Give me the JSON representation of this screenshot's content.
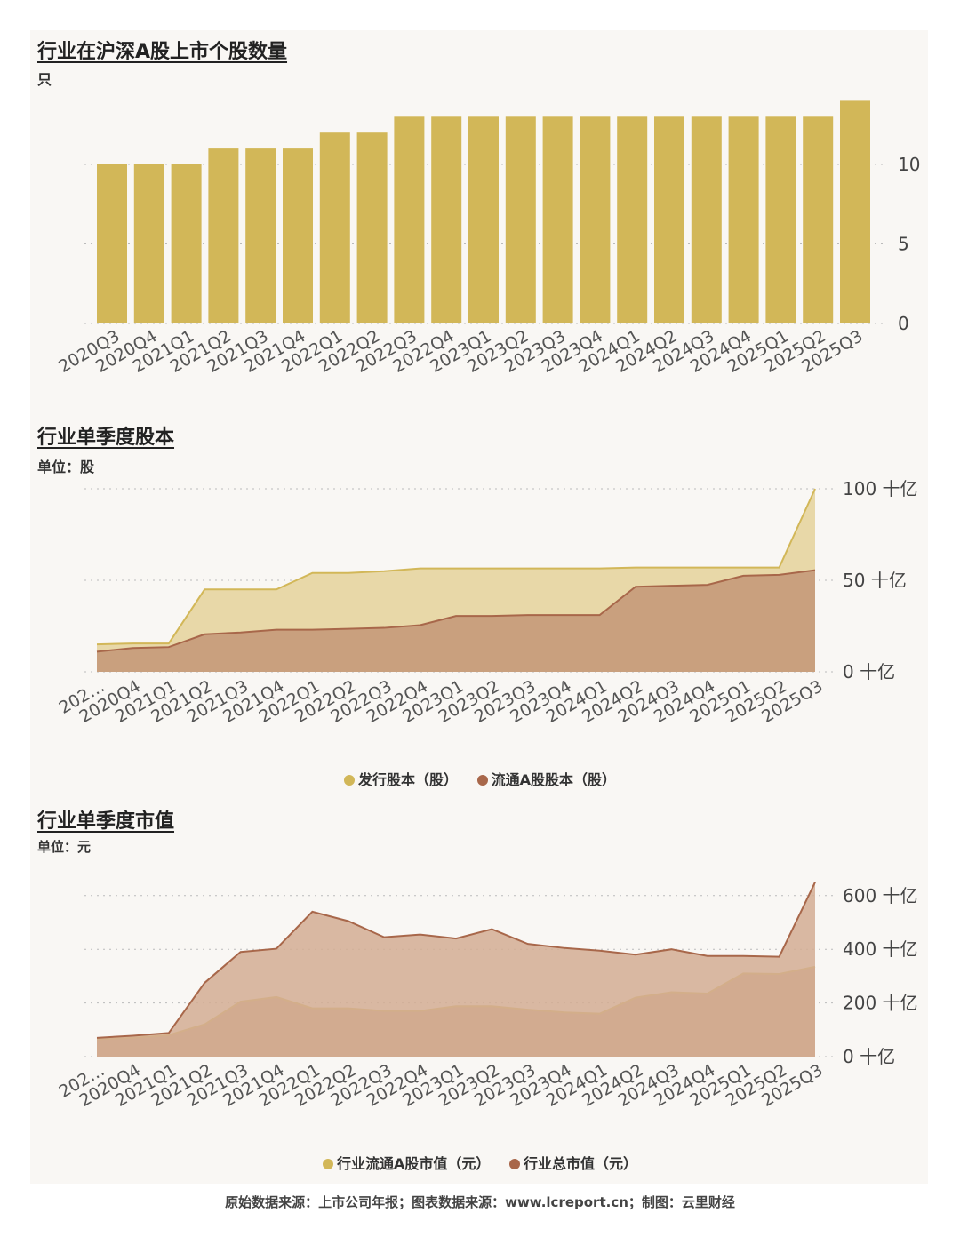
{
  "footer": "原始数据来源：上市公司年报；图表数据来源：www.lcreport.cn；制图：云里财经",
  "colors": {
    "gold": "#d2b758",
    "gold_fill": "#e8d8a8",
    "brown": "#a8674a",
    "brown_fill": "#c9a07e",
    "brown_fill2": "#d4ad93"
  },
  "chart_data": [
    {
      "type": "bar",
      "title": "行业在沪深A股上市个股数量",
      "unit": "只",
      "categories": [
        "2020Q3",
        "2020Q4",
        "2021Q1",
        "2021Q2",
        "2021Q3",
        "2021Q4",
        "2022Q1",
        "2022Q2",
        "2022Q3",
        "2022Q4",
        "2023Q1",
        "2023Q2",
        "2023Q3",
        "2023Q4",
        "2024Q1",
        "2024Q2",
        "2024Q3",
        "2024Q4",
        "2025Q1",
        "2025Q2",
        "2025Q3"
      ],
      "values": [
        10,
        10,
        10,
        11,
        11,
        11,
        12,
        12,
        13,
        13,
        13,
        13,
        13,
        13,
        13,
        13,
        13,
        13,
        13,
        13,
        14
      ],
      "ylim": [
        0,
        15
      ],
      "yticks": [
        {
          "value": 0,
          "label": "0"
        },
        {
          "value": 5,
          "label": "5"
        },
        {
          "value": 10,
          "label": "10"
        }
      ],
      "grid": true
    },
    {
      "type": "area",
      "title": "行业单季度股本",
      "unit": "单位：股",
      "categories": [
        "202…",
        "2020Q4",
        "2021Q1",
        "2021Q2",
        "2021Q3",
        "2021Q4",
        "2022Q1",
        "2022Q2",
        "2022Q3",
        "2022Q4",
        "2023Q1",
        "2023Q2",
        "2023Q3",
        "2023Q4",
        "2024Q1",
        "2024Q2",
        "2024Q3",
        "2024Q4",
        "2025Q1",
        "2025Q2",
        "2025Q3"
      ],
      "series": [
        {
          "name": "发行股本（股）",
          "values": [
            15,
            15.5,
            15.5,
            45,
            45,
            45,
            54,
            54,
            55,
            56.5,
            56.5,
            56.5,
            56.5,
            56.5,
            56.5,
            57,
            57,
            57,
            57,
            57,
            100
          ]
        },
        {
          "name": "流通A股股本（股）",
          "values": [
            11,
            13,
            13.5,
            20.5,
            21.5,
            23,
            23,
            23.5,
            24,
            25.5,
            30.5,
            30.5,
            31,
            31,
            31,
            46.5,
            47,
            47.5,
            52.5,
            53,
            55.5
          ]
        }
      ],
      "ylim": [
        0,
        100
      ],
      "yticks": [
        {
          "value": 0,
          "label": "0 十亿"
        },
        {
          "value": 50,
          "label": "50 十亿"
        },
        {
          "value": 100,
          "label": "100 十亿"
        }
      ],
      "legend": "bottom",
      "grid": true
    },
    {
      "type": "area",
      "title": "行业单季度市值",
      "unit": "单位：元",
      "categories": [
        "202…",
        "2020Q4",
        "2021Q1",
        "2021Q2",
        "2021Q3",
        "2021Q4",
        "2022Q1",
        "2022Q2",
        "2022Q3",
        "2022Q4",
        "2023Q1",
        "2023Q2",
        "2023Q3",
        "2023Q4",
        "2024Q1",
        "2024Q2",
        "2024Q3",
        "2024Q4",
        "2025Q1",
        "2025Q2",
        "2025Q3"
      ],
      "series": [
        {
          "name": "行业流通A股市值（元）",
          "values": [
            65,
            70,
            80,
            120,
            205,
            222,
            180,
            180,
            170,
            170,
            188,
            188,
            175,
            165,
            160,
            220,
            240,
            235,
            310,
            308,
            335
          ]
        },
        {
          "name": "行业总市值（元）",
          "values": [
            70,
            78,
            88,
            275,
            390,
            402,
            540,
            505,
            445,
            455,
            440,
            475,
            420,
            405,
            395,
            380,
            400,
            375,
            375,
            372,
            650
          ]
        }
      ],
      "ylim": [
        0,
        650
      ],
      "yticks": [
        {
          "value": 0,
          "label": "0 十亿"
        },
        {
          "value": 200,
          "label": "200 十亿"
        },
        {
          "value": 400,
          "label": "400 十亿"
        },
        {
          "value": 600,
          "label": "600 十亿"
        }
      ],
      "legend": "bottom",
      "grid": true
    }
  ]
}
